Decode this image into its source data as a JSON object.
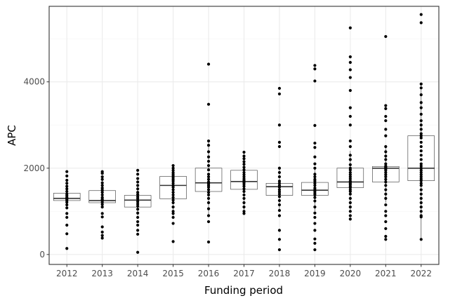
{
  "chart_data": {
    "type": "box",
    "title": "",
    "xlabel": "Funding period",
    "ylabel": "APC",
    "categories": [
      "2012",
      "2013",
      "2014",
      "2015",
      "2016",
      "2017",
      "2018",
      "2019",
      "2020",
      "2021",
      "2022"
    ],
    "yticks": [
      0,
      2000,
      4000
    ],
    "ylim": [
      -230,
      5750
    ],
    "grid": true,
    "boxes": [
      {
        "category": "2012",
        "q1": 1250,
        "median": 1300,
        "q3": 1420,
        "whisker_low": 1150,
        "whisker_high": 1700
      },
      {
        "category": "2013",
        "q1": 1200,
        "median": 1250,
        "q3": 1480,
        "whisker_low": 1100,
        "whisker_high": 1750
      },
      {
        "category": "2014",
        "q1": 1100,
        "median": 1260,
        "q3": 1370,
        "whisker_low": 900,
        "whisker_high": 1600
      },
      {
        "category": "2015",
        "q1": 1290,
        "median": 1600,
        "q3": 1810,
        "whisker_low": 900,
        "whisker_high": 2060
      },
      {
        "category": "2016",
        "q1": 1460,
        "median": 1660,
        "q3": 2000,
        "whisker_low": 900,
        "whisker_high": 2650
      },
      {
        "category": "2017",
        "q1": 1510,
        "median": 1690,
        "q3": 1950,
        "whisker_low": 1000,
        "whisker_high": 2370
      },
      {
        "category": "2018",
        "q1": 1370,
        "median": 1570,
        "q3": 1650,
        "whisker_low": 1000,
        "whisker_high": 2000
      },
      {
        "category": "2019",
        "q1": 1370,
        "median": 1490,
        "q3": 1670,
        "whisker_low": 1000,
        "whisker_high": 2000
      },
      {
        "category": "2020",
        "q1": 1550,
        "median": 1680,
        "q3": 2000,
        "whisker_low": 1000,
        "whisker_high": 2400
      },
      {
        "category": "2021",
        "q1": 1680,
        "median": 2000,
        "q3": 2040,
        "whisker_low": 1200,
        "whisker_high": 2500
      },
      {
        "category": "2022",
        "q1": 1710,
        "median": 2000,
        "q3": 2750,
        "whisker_low": 350,
        "whisker_high": 3950
      }
    ],
    "points": {
      "2012": [
        1920,
        1820,
        1720,
        1650,
        1580,
        1520,
        1460,
        1400,
        1360,
        1320,
        1300,
        1280,
        1250,
        1210,
        1150,
        1080,
        950,
        860,
        680,
        480,
        140
      ],
      "2013": [
        1920,
        1880,
        1800,
        1740,
        1660,
        1600,
        1540,
        1490,
        1440,
        1380,
        1320,
        1280,
        1250,
        1210,
        1160,
        1100,
        950,
        870,
        640,
        520,
        440,
        380
      ],
      "2014": [
        1950,
        1860,
        1760,
        1680,
        1600,
        1520,
        1440,
        1390,
        1340,
        1300,
        1260,
        1220,
        1170,
        1120,
        1050,
        960,
        860,
        760,
        680,
        560,
        470,
        50
      ],
      "2015": [
        2060,
        2000,
        1950,
        1900,
        1860,
        1820,
        1780,
        1740,
        1700,
        1650,
        1600,
        1560,
        1500,
        1440,
        1380,
        1320,
        1260,
        1200,
        1100,
        1000,
        950,
        860,
        720,
        300
      ],
      "2016": [
        4410,
        3480,
        2630,
        2530,
        2380,
        2260,
        2160,
        2060,
        1960,
        1860,
        1800,
        1740,
        1680,
        1640,
        1600,
        1560,
        1500,
        1440,
        1380,
        1300,
        1200,
        1060,
        900,
        760,
        290
      ],
      "2017": [
        2370,
        2280,
        2220,
        2150,
        2090,
        2020,
        1960,
        1900,
        1850,
        1800,
        1750,
        1710,
        1670,
        1630,
        1580,
        1520,
        1460,
        1380,
        1300,
        1200,
        1100,
        1000,
        950
      ],
      "2018": [
        3850,
        3720,
        3000,
        2600,
        2500,
        2000,
        1900,
        1800,
        1700,
        1650,
        1600,
        1560,
        1500,
        1450,
        1400,
        1340,
        1250,
        1150,
        1020,
        900,
        560,
        350,
        110
      ],
      "2019": [
        4380,
        4300,
        4020,
        2990,
        2580,
        2480,
        2260,
        2100,
        2000,
        1860,
        1800,
        1740,
        1700,
        1650,
        1600,
        1540,
        1500,
        1460,
        1420,
        1380,
        1320,
        1240,
        1100,
        960,
        860,
        720,
        560,
        360,
        260,
        110
      ],
      "2020": [
        5250,
        4580,
        4450,
        4280,
        4100,
        3800,
        3400,
        3200,
        3000,
        2630,
        2500,
        2300,
        2200,
        2080,
        2000,
        1960,
        1900,
        1850,
        1800,
        1750,
        1700,
        1680,
        1650,
        1620,
        1580,
        1550,
        1500,
        1460,
        1400,
        1300,
        1200,
        1100,
        1000,
        900,
        820
      ],
      "2021": [
        5050,
        3450,
        3380,
        3200,
        3100,
        2900,
        2750,
        2500,
        2380,
        2280,
        2200,
        2100,
        2050,
        2030,
        2010,
        2000,
        1980,
        1950,
        1900,
        1850,
        1800,
        1740,
        1680,
        1600,
        1500,
        1400,
        1300,
        1150,
        1000,
        900,
        760,
        600,
        420,
        350
      ],
      "2022": [
        5560,
        5370,
        3950,
        3860,
        3700,
        3520,
        3400,
        3250,
        3100,
        3000,
        2900,
        2800,
        2750,
        2700,
        2600,
        2500,
        2400,
        2300,
        2200,
        2100,
        2050,
        2000,
        1950,
        1900,
        1850,
        1800,
        1750,
        1710,
        1650,
        1600,
        1500,
        1400,
        1300,
        1200,
        1100,
        1000,
        900,
        870,
        350
      ]
    },
    "colors": {
      "background": "#ffffff",
      "grid_major": "#ebebeb",
      "grid_minor": "#f5f5f5",
      "panel_border": "#333333",
      "box_line": "#333333",
      "point": "#000000",
      "tick_text": "#4d4d4d",
      "title_text": "#000000"
    }
  }
}
